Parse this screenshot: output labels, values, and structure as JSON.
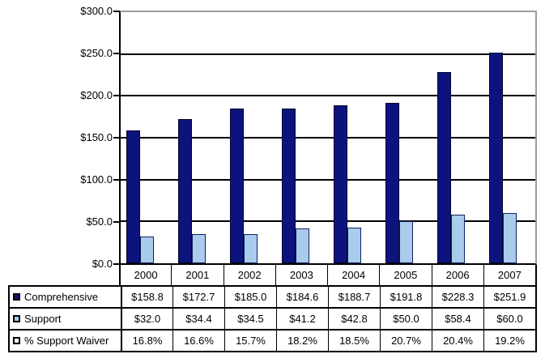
{
  "chart_data": {
    "type": "bar",
    "title": "",
    "xlabel": "",
    "ylabel": "",
    "categories": [
      "2000",
      "2001",
      "2002",
      "2003",
      "2004",
      "2005",
      "2006",
      "2007"
    ],
    "series": [
      {
        "name": "Comprehensive",
        "values": [
          158.8,
          172.7,
          185.0,
          184.6,
          188.7,
          191.8,
          228.3,
          251.9
        ],
        "display": [
          "$158.8",
          "$172.7",
          "$185.0",
          "$184.6",
          "$188.7",
          "$191.8",
          "$228.3",
          "$251.9"
        ],
        "color": "#0d137d",
        "border_color": "#01042e",
        "plotted_as_bars": true
      },
      {
        "name": "Support",
        "values": [
          32.0,
          34.4,
          34.5,
          41.2,
          42.8,
          50.0,
          58.4,
          60.0
        ],
        "display": [
          "$32.0",
          "$34.4",
          "$34.5",
          "$41.2",
          "$42.8",
          "$50.0",
          "$58.4",
          "$60.0"
        ],
        "color": "#a9cbec",
        "border_color": "#122063",
        "plotted_as_bars": true
      },
      {
        "name": "% Support Waiver",
        "values": [
          16.8,
          16.6,
          15.7,
          18.2,
          18.5,
          20.7,
          20.4,
          19.2
        ],
        "display": [
          "16.8%",
          "16.6%",
          "15.7%",
          "18.2%",
          "18.5%",
          "20.7%",
          "20.4%",
          "19.2%"
        ],
        "color": "#ffffff",
        "border_color": "#000000",
        "plotted_as_bars": false
      }
    ],
    "ylim": [
      0,
      300
    ],
    "ytick_interval": 50,
    "ytick_labels": [
      "$300.0",
      "$250.0",
      "$200.0",
      "$150.0",
      "$100.0",
      "$50.0",
      "$0.0"
    ],
    "grid": true,
    "legend_position": "table-left",
    "colors": {
      "gridline": "#000000",
      "axis": "#000000",
      "plot_border_gray": "#9c9c9c",
      "background": "#ffffff"
    }
  }
}
